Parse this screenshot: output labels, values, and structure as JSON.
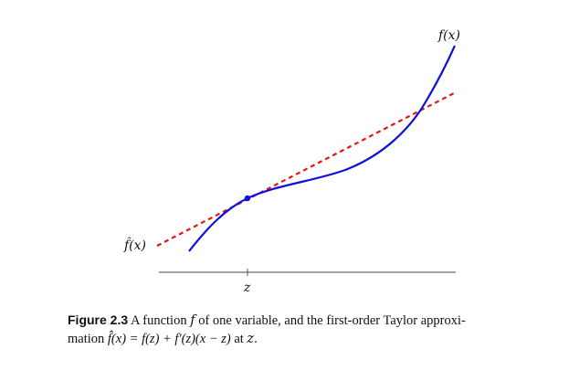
{
  "figure": {
    "curve_label": "f(x)",
    "tangent_label": "f̂(x)",
    "tick_label": "z",
    "colors": {
      "curve": "#1010dd",
      "tangent": "#e01818",
      "axis": "#444444",
      "point": "#1010dd"
    },
    "icons": {
      "point": "filled-circle"
    }
  },
  "caption": {
    "label": "Figure 2.3",
    "text_1": "A function",
    "var_f": "f",
    "text_2": "of one variable, and the first-order Taylor approxi-",
    "text_3": "mation",
    "equation": "f̂(x) = f(z) + f′(z)(x − z)",
    "text_4": "at",
    "var_z": "z",
    "text_5": "."
  }
}
